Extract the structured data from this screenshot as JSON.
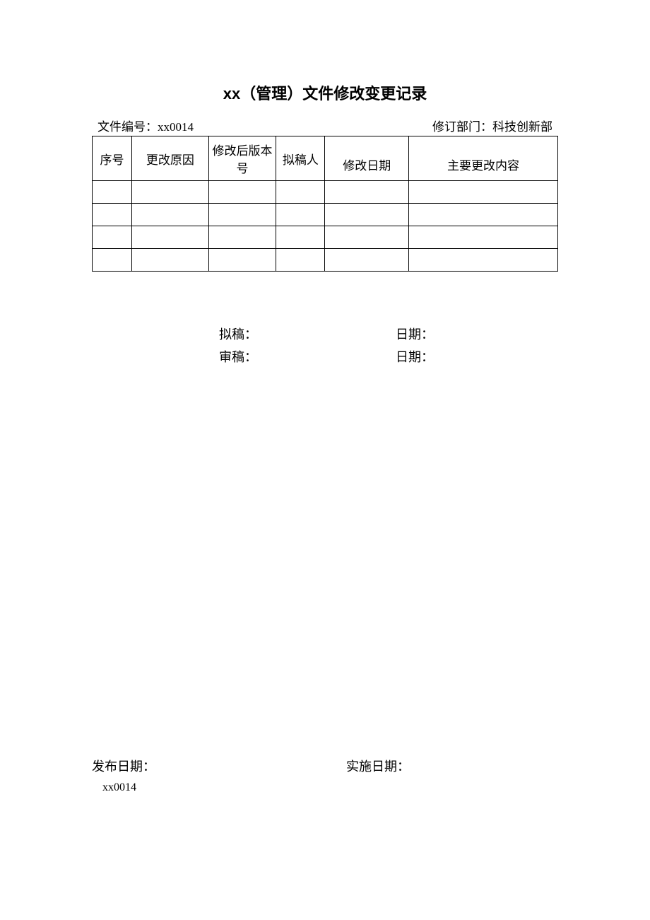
{
  "title": "xx（管理）文件修改变更记录",
  "meta": {
    "fileNumberLabel": "文件编号：",
    "fileNumberValue": "xx0014",
    "revisionDeptLabel": "修订部门：",
    "revisionDeptValue": "科技创新部"
  },
  "table": {
    "columns": [
      "序号",
      "更改原因",
      "修改后版本号",
      "拟稿人",
      "修改日期",
      "主要更改内容"
    ],
    "rows": [
      [
        "",
        "",
        "",
        "",
        "",
        ""
      ],
      [
        "",
        "",
        "",
        "",
        "",
        ""
      ],
      [
        "",
        "",
        "",
        "",
        "",
        ""
      ],
      [
        "",
        "",
        "",
        "",
        "",
        ""
      ]
    ]
  },
  "signatures": {
    "draftLabel": "拟稿：",
    "reviewLabel": "审稿：",
    "dateLabel": "日期："
  },
  "footer": {
    "publishDateLabel": "发布日期：",
    "implementDateLabel": "实施日期：",
    "code": "xx0014"
  }
}
